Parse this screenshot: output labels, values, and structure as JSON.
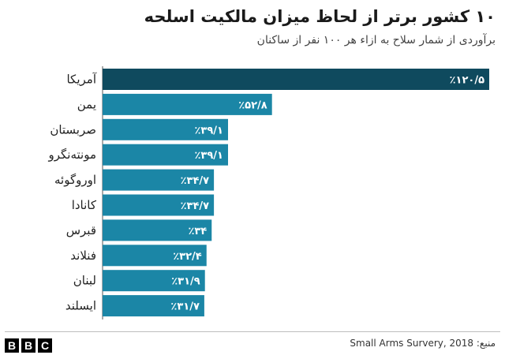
{
  "chart_data": {
    "type": "bar",
    "orientation": "horizontal",
    "title": "۱۰ کشور برتر از لحاظ میزان مالکیت اسلحه",
    "subtitle": "برآوردی از شمار سلاح به ازاء هر ۱۰۰ نفر از ساکنان",
    "categories": [
      "آمریکا",
      "یمن",
      "صربستان",
      "مونته‌نگرو",
      "اوروگوئه",
      "کانادا",
      "قبرس",
      "فنلاند",
      "لبنان",
      "ایسلند"
    ],
    "values": [
      120.5,
      52.8,
      39.1,
      39.1,
      34.7,
      34.7,
      34,
      32.4,
      31.9,
      31.7
    ],
    "value_labels": [
      "٪۱۲۰/۵",
      "٪۵۲/۸",
      "٪۳۹/۱",
      "٪۳۹/۱",
      "٪۳۴/۷",
      "٪۳۴/۷",
      "٪۳۴",
      "٪۳۲/۴",
      "٪۳۱/۹",
      "٪۳۱/۷"
    ],
    "xlim": [
      0,
      120.5
    ],
    "grid": false,
    "legend": "none",
    "colors": {
      "highlight": "#0f4a5e",
      "bar": "#1b86a6"
    }
  },
  "footer": {
    "source": "منبع: Small Arms Survery, 2018",
    "logo_letters": [
      "B",
      "B",
      "C"
    ]
  }
}
